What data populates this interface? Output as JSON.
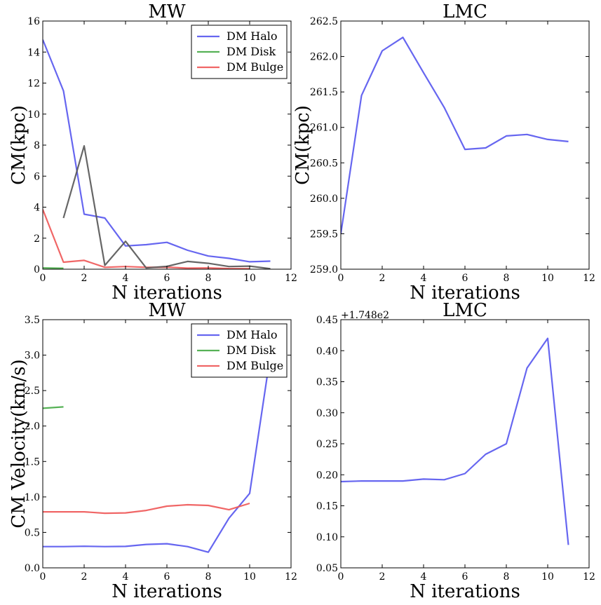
{
  "chart_data": [
    {
      "type": "line",
      "title": "MW",
      "xlabel": "N iterations",
      "ylabel": "CM(kpc)",
      "xlim": [
        0,
        12
      ],
      "ylim": [
        0,
        16
      ],
      "xticks": [
        "0",
        "2",
        "4",
        "6",
        "8",
        "10",
        "12"
      ],
      "yticks": [
        "0",
        "2",
        "4",
        "6",
        "8",
        "10",
        "12",
        "14",
        "16"
      ],
      "grid": false,
      "legend_position": "top-right",
      "series": [
        {
          "name": "DM Halo",
          "color": "#5555ee",
          "in_legend": true,
          "x": [
            0,
            1,
            2,
            3,
            4,
            5,
            6,
            7,
            8,
            9,
            10,
            11
          ],
          "y": [
            14.8,
            11.5,
            3.55,
            3.3,
            1.5,
            1.58,
            1.73,
            1.22,
            0.85,
            0.7,
            0.48,
            0.52
          ]
        },
        {
          "name": "DM Disk",
          "color": "#44aa44",
          "in_legend": true,
          "x": [
            0,
            1
          ],
          "y": [
            0.08,
            0.06
          ]
        },
        {
          "name": "DM Bulge",
          "color": "#ee5555",
          "in_legend": true,
          "x": [
            0,
            1,
            2,
            3,
            4,
            5,
            6,
            7,
            8,
            9,
            10
          ],
          "y": [
            3.85,
            0.45,
            0.57,
            0.12,
            0.17,
            0.12,
            0.13,
            0.07,
            0.08,
            0.04,
            0.03
          ]
        },
        {
          "name": "",
          "color": "#555555",
          "in_legend": false,
          "x": [
            1,
            2,
            3,
            4,
            5,
            6,
            7,
            8,
            9,
            10,
            11
          ],
          "y": [
            3.3,
            7.95,
            0.25,
            1.8,
            0.08,
            0.18,
            0.5,
            0.38,
            0.17,
            0.2,
            0.03
          ]
        }
      ]
    },
    {
      "type": "line",
      "title": "LMC",
      "xlabel": "N iterations",
      "ylabel": "CM(kpc)",
      "xlim": [
        0,
        12
      ],
      "ylim": [
        259.0,
        262.5
      ],
      "xticks": [
        "0",
        "2",
        "4",
        "6",
        "8",
        "10",
        "12"
      ],
      "yticks": [
        "259.0",
        "259.5",
        "260.0",
        "260.5",
        "261.0",
        "261.5",
        "262.0",
        "262.5"
      ],
      "grid": false,
      "series": [
        {
          "name": "",
          "color": "#5555ee",
          "in_legend": false,
          "x": [
            0,
            1,
            2,
            3,
            4,
            5,
            6,
            7,
            8,
            9,
            10,
            11
          ],
          "y": [
            259.5,
            261.45,
            262.08,
            262.27,
            261.77,
            261.28,
            260.69,
            260.71,
            260.88,
            260.9,
            260.83,
            260.8
          ]
        }
      ]
    },
    {
      "type": "line",
      "title": "MW",
      "xlabel": "N iterations",
      "ylabel": "CM Velocity(km/s)",
      "xlim": [
        0,
        12
      ],
      "ylim": [
        0.0,
        3.5
      ],
      "xticks": [
        "0",
        "2",
        "4",
        "6",
        "8",
        "10",
        "12"
      ],
      "yticks": [
        "0.0",
        "0.5",
        "1.0",
        "1.5",
        "2.0",
        "2.5",
        "3.0",
        "3.5"
      ],
      "grid": false,
      "legend_position": "top-right",
      "series": [
        {
          "name": "DM Halo",
          "color": "#5555ee",
          "in_legend": true,
          "x": [
            0,
            1,
            2,
            3,
            4,
            5,
            6,
            7,
            8,
            9,
            10,
            11
          ],
          "y": [
            0.3,
            0.3,
            0.305,
            0.3,
            0.303,
            0.33,
            0.34,
            0.3,
            0.22,
            0.7,
            1.05,
            3.0
          ]
        },
        {
          "name": "DM Disk",
          "color": "#44aa44",
          "in_legend": true,
          "x": [
            0,
            1
          ],
          "y": [
            2.25,
            2.27
          ]
        },
        {
          "name": "DM Bulge",
          "color": "#ee5555",
          "in_legend": true,
          "x": [
            0,
            1,
            2,
            3,
            4,
            5,
            6,
            7,
            8,
            9,
            10
          ],
          "y": [
            0.79,
            0.79,
            0.79,
            0.77,
            0.775,
            0.81,
            0.87,
            0.89,
            0.88,
            0.82,
            0.91
          ]
        }
      ]
    },
    {
      "type": "line",
      "title": "LMC",
      "xlabel": "N iterations",
      "ylabel": "",
      "offset_text": "+1.748e2",
      "xlim": [
        0,
        12
      ],
      "ylim": [
        0.05,
        0.45
      ],
      "xticks": [
        "0",
        "2",
        "4",
        "6",
        "8",
        "10",
        "12"
      ],
      "yticks": [
        "0.05",
        "0.10",
        "0.15",
        "0.20",
        "0.25",
        "0.30",
        "0.35",
        "0.40",
        "0.45"
      ],
      "grid": false,
      "series": [
        {
          "name": "",
          "color": "#5555ee",
          "in_legend": false,
          "x": [
            0,
            1,
            2,
            3,
            4,
            5,
            6,
            7,
            8,
            9,
            10,
            11
          ],
          "y": [
            0.189,
            0.19,
            0.19,
            0.19,
            0.193,
            0.192,
            0.202,
            0.233,
            0.25,
            0.372,
            0.42,
            0.087
          ]
        }
      ]
    }
  ]
}
